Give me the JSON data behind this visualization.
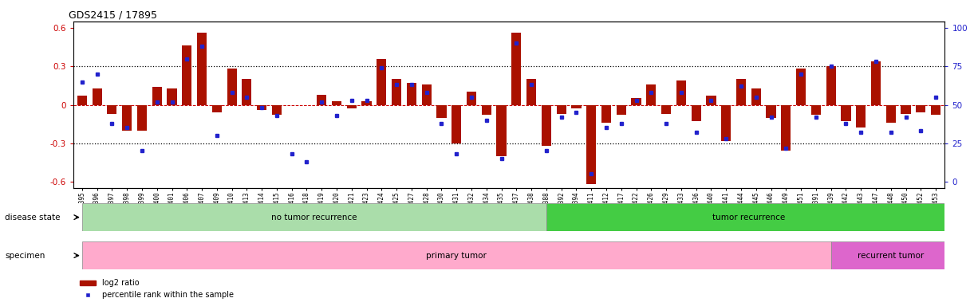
{
  "title": "GDS2415 / 17895",
  "samples": [
    "GSM110395",
    "GSM110396",
    "GSM110397",
    "GSM110398",
    "GSM110399",
    "GSM110400",
    "GSM110401",
    "GSM110406",
    "GSM110407",
    "GSM110409",
    "GSM110410",
    "GSM110413",
    "GSM110414",
    "GSM110415",
    "GSM110416",
    "GSM110418",
    "GSM110419",
    "GSM110420",
    "GSM110421",
    "GSM110423",
    "GSM110424",
    "GSM110425",
    "GSM110427",
    "GSM110428",
    "GSM110430",
    "GSM110431",
    "GSM110432",
    "GSM110434",
    "GSM110435",
    "GSM110437",
    "GSM110438",
    "GSM110388",
    "GSM110392",
    "GSM110394",
    "GSM110411",
    "GSM110412",
    "GSM110417",
    "GSM110422",
    "GSM110426",
    "GSM110429",
    "GSM110433",
    "GSM110436",
    "GSM110440",
    "GSM110441",
    "GSM110444",
    "GSM110445",
    "GSM110446",
    "GSM110449",
    "GSM110451",
    "GSM110391",
    "GSM110439",
    "GSM110442",
    "GSM110443",
    "GSM110447",
    "GSM110448",
    "GSM110450",
    "GSM110452",
    "GSM110453"
  ],
  "log2_ratio": [
    0.07,
    0.13,
    -0.07,
    -0.2,
    -0.2,
    0.14,
    0.13,
    0.46,
    0.56,
    -0.06,
    0.28,
    0.2,
    -0.04,
    -0.08,
    0.0,
    0.0,
    0.08,
    0.03,
    -0.03,
    0.03,
    0.36,
    0.2,
    0.17,
    0.16,
    -0.1,
    -0.3,
    0.1,
    -0.08,
    -0.4,
    0.56,
    0.2,
    -0.32,
    -0.07,
    -0.03,
    -0.62,
    -0.14,
    -0.08,
    0.05,
    0.16,
    -0.07,
    0.19,
    -0.13,
    0.07,
    -0.28,
    0.2,
    0.13,
    -0.1,
    -0.36,
    0.28,
    -0.08,
    0.3,
    -0.13,
    -0.18,
    0.34,
    -0.14,
    -0.07,
    -0.06,
    -0.08
  ],
  "percentile_rank": [
    65,
    70,
    38,
    35,
    20,
    52,
    52,
    80,
    88,
    30,
    58,
    55,
    48,
    43,
    18,
    13,
    52,
    43,
    53,
    53,
    74,
    63,
    63,
    58,
    38,
    18,
    55,
    40,
    15,
    90,
    63,
    20,
    42,
    45,
    5,
    35,
    38,
    53,
    58,
    38,
    58,
    32,
    53,
    28,
    62,
    55,
    42,
    22,
    70,
    42,
    75,
    38,
    32,
    78,
    32,
    42,
    33,
    55
  ],
  "no_recurrence_count": 31,
  "recurrence_count": 27,
  "primary_tumor_count": 50,
  "recurrent_tumor_count": 8,
  "bar_color": "#AA1100",
  "dot_color": "#2222CC",
  "no_recurrence_color": "#AADDAA",
  "recurrence_color": "#44CC44",
  "primary_tumor_color": "#FFAACC",
  "recurrent_tumor_color": "#DD66CC",
  "ylim": [
    -0.65,
    0.65
  ],
  "yticks": [
    -0.6,
    -0.3,
    0.0,
    0.3,
    0.6
  ],
  "right_yticks": [
    0,
    25,
    50,
    75,
    100
  ],
  "dotted_lines": [
    -0.3,
    0.3
  ],
  "zero_line": 0.0,
  "background_color": "#ffffff"
}
